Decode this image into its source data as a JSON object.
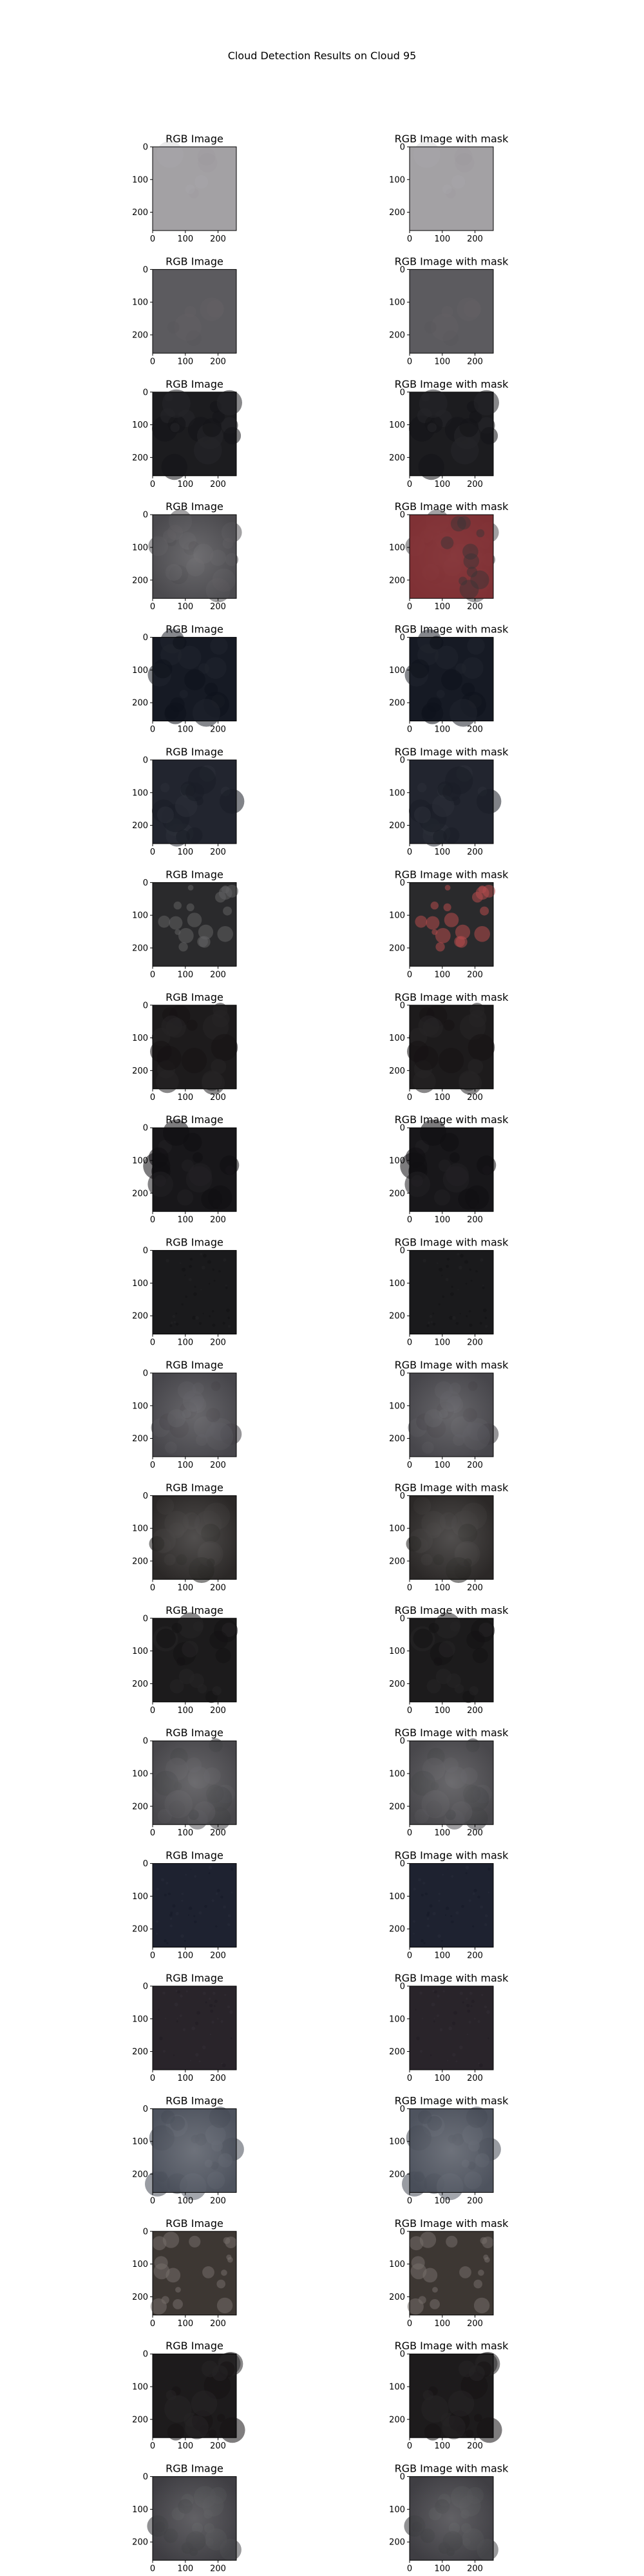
{
  "figure": {
    "title": "Cloud Detection Results on Cloud 95"
  },
  "chart_data": {
    "type": "image-grid",
    "title": "Cloud Detection Results on Cloud 95",
    "columns": [
      "RGB Image",
      "RGB Image with mask"
    ],
    "xticks": [
      0,
      100,
      200
    ],
    "yticks": [
      0,
      100,
      200
    ],
    "image_extent": [
      0,
      256
    ],
    "rows": [
      {
        "tone": "#a3a1a4",
        "mask": "none",
        "pattern": "smooth"
      },
      {
        "tone": "#5c5b5f",
        "mask": "none",
        "pattern": "smooth"
      },
      {
        "tone": "#1c1c1f",
        "mask": "none",
        "pattern": "dark"
      },
      {
        "tone": "#4b4a4e",
        "mask": "#8e2a2e",
        "pattern": "mottled"
      },
      {
        "tone": "#161a24",
        "mask": "none",
        "pattern": "dark"
      },
      {
        "tone": "#22252f",
        "mask": "none",
        "pattern": "dark"
      },
      {
        "tone": "#2a2a2c",
        "mask": "#b44a4c",
        "pattern": "blobs"
      },
      {
        "tone": "#1d1b1c",
        "mask": "none",
        "pattern": "dark"
      },
      {
        "tone": "#18171a",
        "mask": "none",
        "pattern": "dark"
      },
      {
        "tone": "#1a1a1c",
        "mask": "none",
        "pattern": "speckle"
      },
      {
        "tone": "#47464b",
        "mask": "none",
        "pattern": "mottled"
      },
      {
        "tone": "#2b2827",
        "mask": "none",
        "pattern": "mottled"
      },
      {
        "tone": "#1c1b1c",
        "mask": "none",
        "pattern": "dark"
      },
      {
        "tone": "#48474b",
        "mask": "none",
        "pattern": "haze"
      },
      {
        "tone": "#1e2230",
        "mask": "none",
        "pattern": "speckle"
      },
      {
        "tone": "#29242a",
        "mask": "none",
        "pattern": "speckle"
      },
      {
        "tone": "#4e535e",
        "mask": "none",
        "pattern": "haze"
      },
      {
        "tone": "#3d3733",
        "mask": "none",
        "pattern": "blobs"
      },
      {
        "tone": "#1d1b1c",
        "mask": "none",
        "pattern": "dark"
      },
      {
        "tone": "#3f3e43",
        "mask": "none",
        "pattern": "haze"
      }
    ]
  }
}
